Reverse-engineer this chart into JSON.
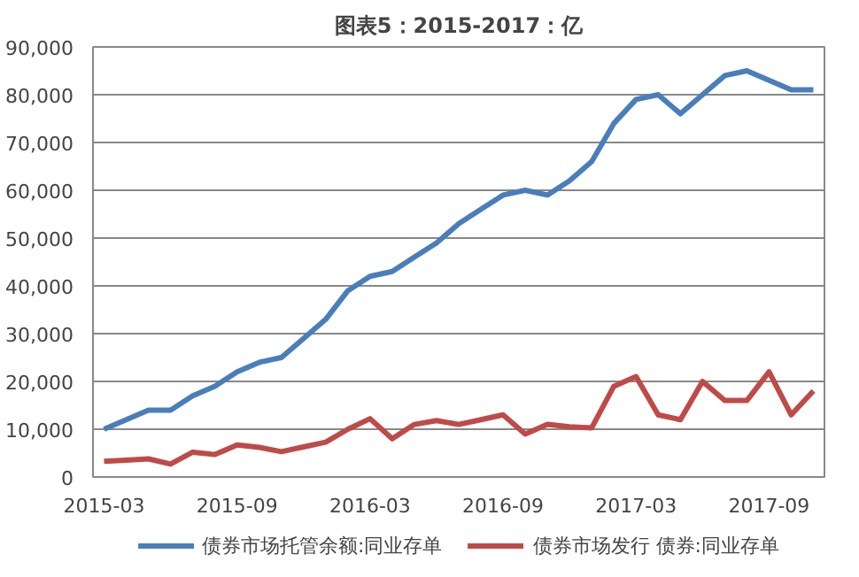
{
  "chart_data": {
    "type": "line",
    "title": "图表5：2015-2017：亿",
    "categories": [
      "2015-03",
      null,
      null,
      null,
      null,
      null,
      "2015-09",
      null,
      null,
      null,
      null,
      null,
      "2016-03",
      null,
      null,
      null,
      null,
      null,
      "2016-09",
      null,
      null,
      null,
      null,
      null,
      "2017-03",
      null,
      null,
      null,
      null,
      null,
      "2017-09",
      null,
      null
    ],
    "series": [
      {
        "name": "债券市场托管余额:同业存单",
        "color": "#4a7ebb",
        "values": [
          10000,
          12000,
          14000,
          14000,
          17000,
          19000,
          22000,
          24000,
          25000,
          29000,
          33000,
          39000,
          42000,
          43000,
          46000,
          49000,
          53000,
          56000,
          59000,
          60000,
          59000,
          62000,
          66000,
          74000,
          79000,
          80000,
          76000,
          80000,
          84000,
          85000,
          83000,
          81000,
          81000
        ]
      },
      {
        "name": "债券市场发行 债券:同业存单",
        "color": "#be4b48",
        "values": [
          3300,
          3500,
          3800,
          2700,
          5200,
          4700,
          6700,
          6200,
          5300,
          6300,
          7300,
          10000,
          12200,
          8000,
          11000,
          11800,
          11000,
          12000,
          13000,
          9000,
          11000,
          10500,
          10300,
          19000,
          21000,
          13000,
          12000,
          20000,
          16000,
          16000,
          22000,
          13000,
          18000
        ]
      }
    ],
    "ylim": [
      0,
      90000
    ],
    "yticks": [
      {
        "value": 0,
        "label": "0"
      },
      {
        "value": 10000,
        "label": "10,000"
      },
      {
        "value": 20000,
        "label": "20,000"
      },
      {
        "value": 30000,
        "label": "30,000"
      },
      {
        "value": 40000,
        "label": "40,000"
      },
      {
        "value": 50000,
        "label": "50,000"
      },
      {
        "value": 60000,
        "label": "60,000"
      },
      {
        "value": 70000,
        "label": "70,000"
      },
      {
        "value": 80000,
        "label": "80,000"
      },
      {
        "value": 90000,
        "label": "90,000"
      }
    ],
    "grid": "y",
    "legend": "bottom",
    "line_style": "solid",
    "marker": "none"
  }
}
